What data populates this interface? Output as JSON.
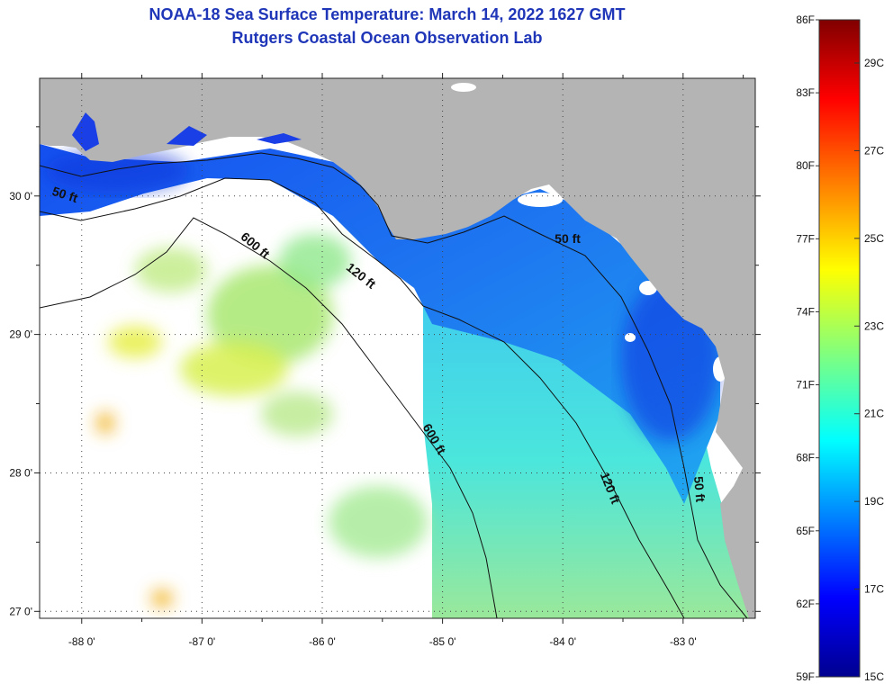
{
  "header": {
    "title": "NOAA-18 Sea Surface Temperature:  March 14, 2022 1627 GMT",
    "subtitle": "Rutgers Coastal Ocean Observation Lab"
  },
  "map": {
    "lon_range": [
      -88.35,
      -82.4
    ],
    "lat_range": [
      26.95,
      30.85
    ],
    "lat_ticks": [
      {
        "value": 30,
        "label": "30 0'"
      },
      {
        "value": 29,
        "label": "29 0'"
      },
      {
        "value": 28,
        "label": "28 0'"
      },
      {
        "value": 27,
        "label": "27 0'"
      }
    ],
    "lon_ticks": [
      {
        "value": -88,
        "label": "-88 0'"
      },
      {
        "value": -87,
        "label": "-87 0'"
      },
      {
        "value": -86,
        "label": "-86 0'"
      },
      {
        "value": -85,
        "label": "-85 0'"
      },
      {
        "value": -84,
        "label": "-84 0'"
      },
      {
        "value": -83,
        "label": "-83 0'"
      }
    ],
    "contour_labels": [
      {
        "text": "50 ft",
        "lon": -88.15,
        "lat": 29.98,
        "angle": 18
      },
      {
        "text": "600 ft",
        "lon": -86.58,
        "lat": 29.62,
        "angle": 40
      },
      {
        "text": "120 ft",
        "lon": -85.7,
        "lat": 29.4,
        "angle": 38
      },
      {
        "text": "50 ft",
        "lon": -83.96,
        "lat": 29.66,
        "angle": 0
      },
      {
        "text": "600 ft",
        "lon": -85.1,
        "lat": 28.23,
        "angle": 60
      },
      {
        "text": "120 ft",
        "lon": -83.64,
        "lat": 27.88,
        "angle": 68
      },
      {
        "text": "50 ft",
        "lon": -82.9,
        "lat": 27.88,
        "angle": 85
      }
    ],
    "colors": {
      "land": "#b4b4b4",
      "cloud": "#ffffff",
      "grid": "#444444"
    }
  },
  "colorbar": {
    "f_labels": [
      "86F",
      "83F",
      "80F",
      "77F",
      "74F",
      "71F",
      "68F",
      "65F",
      "62F",
      "59F"
    ],
    "c_labels": [
      "29C",
      "27C",
      "25C",
      "23C",
      "21C",
      "19C",
      "17C",
      "15C"
    ],
    "min_c": 15,
    "max_c": 30
  }
}
